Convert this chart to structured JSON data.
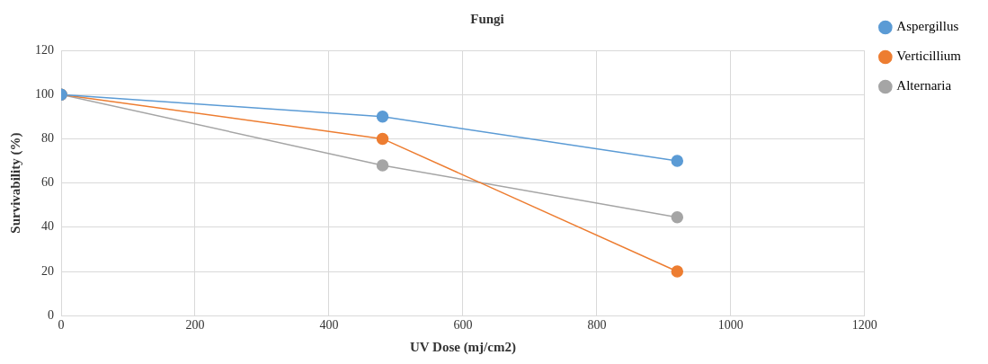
{
  "chart_data": {
    "type": "line",
    "title": "Fungi",
    "xlabel": "UV Dose (mj/cm2)",
    "ylabel": "Survivability (%)",
    "x": [
      0,
      480,
      920
    ],
    "series": [
      {
        "name": "Aspergillus",
        "color": "#5b9bd5",
        "values": [
          100,
          90,
          70
        ]
      },
      {
        "name": "Verticillium",
        "color": "#ed7d31",
        "values": [
          100,
          80,
          20
        ]
      },
      {
        "name": "Alternaria",
        "color": "#a5a5a5",
        "values": [
          100,
          68,
          44.5
        ]
      }
    ],
    "xlim": [
      0,
      1200
    ],
    "xticks": [
      0,
      200,
      400,
      600,
      800,
      1000,
      1200
    ],
    "ylim": [
      0,
      120
    ],
    "yticks": [
      0,
      20,
      40,
      60,
      80,
      100,
      120
    ],
    "grid": true,
    "legend": "right",
    "marker": "circle",
    "line_style": "solid"
  }
}
